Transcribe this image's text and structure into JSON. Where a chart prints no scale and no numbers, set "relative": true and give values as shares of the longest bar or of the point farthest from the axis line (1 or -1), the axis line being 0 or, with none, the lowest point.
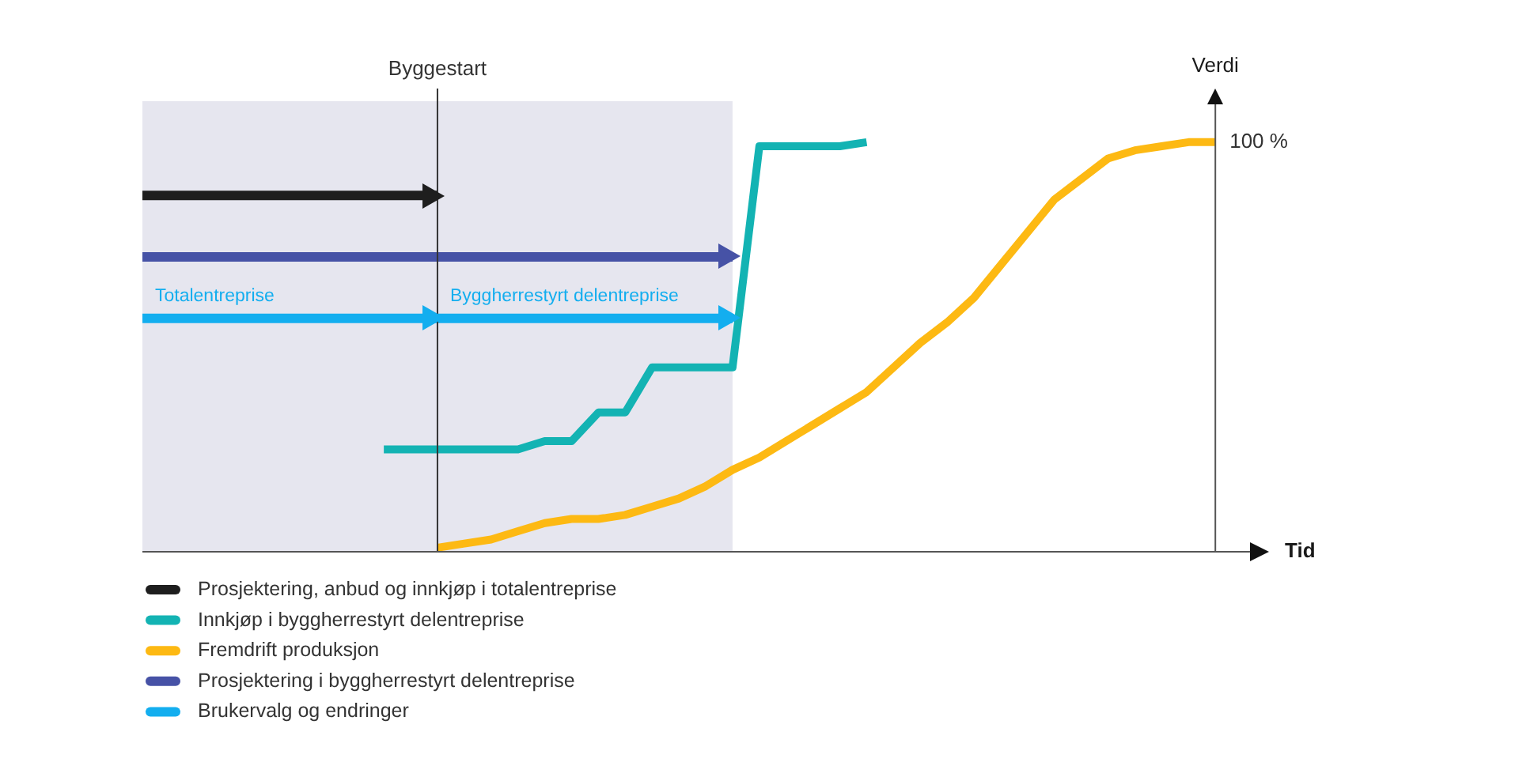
{
  "chart_data": {
    "type": "line",
    "relative": true,
    "xlabel": "Tid",
    "ylabel": "Verdi",
    "legend": "bottom left",
    "categories": [
      null,
      null,
      null,
      null,
      null,
      null,
      null,
      null,
      null,
      null,
      null,
      null,
      null,
      null,
      null,
      null,
      null,
      null,
      null,
      null,
      null,
      null,
      null,
      null,
      null,
      null,
      null,
      null,
      null,
      null,
      null,
      null,
      null,
      null,
      null,
      null,
      null,
      null,
      null,
      null,
      null,
      null,
      null
    ],
    "series": [
      {
        "name": "Prosjektering, anbud og innkjøp i totalentreprise",
        "color": "#1e1e1e",
        "values": [
          0.87,
          0.87,
          0.87,
          0.87,
          0.87,
          0.87,
          0.87,
          0.87,
          0.87,
          0.87,
          0.87,
          0.87,
          null,
          null,
          null,
          null,
          null,
          null,
          null,
          null,
          null,
          null,
          null,
          null,
          null,
          null,
          null,
          null,
          null,
          null,
          null,
          null,
          null,
          null,
          null,
          null,
          null,
          null,
          null,
          null,
          null,
          null,
          null
        ]
      },
      {
        "name": "Innkjøp i byggherrestyrt delentreprise",
        "color": "#13b3b3",
        "values": [
          null,
          null,
          null,
          null,
          null,
          null,
          null,
          null,
          null,
          0.25,
          0.25,
          0.25,
          0.25,
          0.25,
          0.25,
          0.27,
          0.27,
          0.34,
          0.34,
          0.45,
          0.45,
          0.45,
          0.45,
          0.99,
          0.99,
          0.99,
          0.99,
          1.0,
          null,
          null,
          null,
          null,
          null,
          null,
          null,
          null,
          null,
          null,
          null,
          null,
          null,
          null,
          null
        ]
      },
      {
        "name": "Fremdrift produksjon",
        "color": "#fdb913",
        "values": [
          null,
          null,
          null,
          null,
          null,
          null,
          null,
          null,
          null,
          null,
          null,
          0.01,
          0.02,
          0.03,
          0.05,
          0.07,
          0.08,
          0.08,
          0.09,
          0.11,
          0.13,
          0.16,
          0.2,
          0.23,
          0.27,
          0.31,
          0.35,
          0.39,
          0.45,
          0.51,
          0.56,
          0.62,
          0.7,
          0.78,
          0.86,
          0.91,
          0.96,
          0.98,
          0.99,
          1.0,
          1.0,
          null,
          null
        ]
      },
      {
        "name": "Prosjektering i byggherrestyrt delentreprise",
        "color": "#4652a6",
        "values": [
          0.72,
          0.72,
          0.72,
          0.72,
          0.72,
          0.72,
          0.72,
          0.72,
          0.72,
          0.72,
          0.72,
          0.72,
          0.72,
          0.72,
          0.72,
          0.72,
          0.72,
          0.72,
          0.72,
          0.72,
          0.72,
          0.72,
          0.72,
          null,
          null,
          null,
          null,
          null,
          null,
          null,
          null,
          null,
          null,
          null,
          null,
          null,
          null,
          null,
          null,
          null,
          null,
          null,
          null
        ]
      },
      {
        "name": "Brukervalg og endringer",
        "color": "#13aeef",
        "values": [
          0.57,
          0.57,
          0.57,
          0.57,
          0.57,
          0.57,
          0.57,
          0.57,
          0.57,
          0.57,
          0.57,
          0.57,
          null,
          null,
          null,
          null,
          null,
          null,
          null,
          null,
          null,
          null,
          null,
          null,
          null,
          null,
          null,
          null,
          null,
          null,
          null,
          null,
          null,
          null,
          null,
          null,
          null,
          null,
          null,
          null,
          null,
          null,
          null
        ]
      },
      {
        "color": "#13aeef",
        "values": [
          null,
          null,
          null,
          null,
          null,
          null,
          null,
          null,
          null,
          null,
          null,
          0.57,
          0.57,
          0.57,
          0.57,
          0.57,
          0.57,
          0.57,
          0.57,
          0.57,
          0.57,
          0.57,
          0.57,
          null,
          null,
          null,
          null,
          null,
          null,
          null,
          null,
          null,
          null,
          null,
          null,
          null,
          null,
          null,
          null,
          null,
          null,
          null,
          null
        ]
      }
    ],
    "annotations": [
      {
        "text": "Totalentreprise",
        "y": 0.57
      },
      {
        "text": "Byggherrestyrt delentreprise",
        "y": 0.57
      },
      "100 %",
      "Byggestart"
    ]
  }
}
